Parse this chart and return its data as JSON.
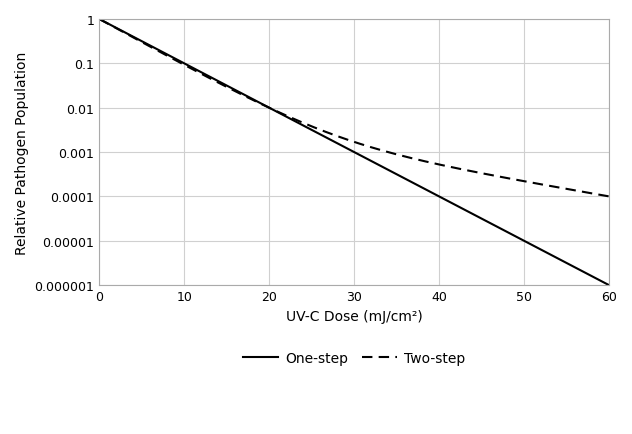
{
  "title": "",
  "xlabel": "UV-C Dose (mJ/cm²)",
  "ylabel": "Relative Pathogen Population",
  "xlim": [
    0,
    60
  ],
  "ylim": [
    1e-06,
    1
  ],
  "xticks": [
    0,
    10,
    20,
    30,
    40,
    50,
    60
  ],
  "one_step_k": 0.23026,
  "f1": 0.99,
  "f2": 0.01,
  "k_high": 0.242,
  "k_low": 0.0768,
  "line_color": "#000000",
  "line_width": 1.5,
  "legend_labels": [
    "One-step",
    "Two-step"
  ],
  "grid_color": "#d0d0d0",
  "background_color": "#ffffff",
  "yticks": [
    1e-06,
    1e-05,
    0.0001,
    0.001,
    0.01,
    0.1,
    1
  ],
  "ylabels": [
    "0.000001",
    "0.00001",
    "0.0001",
    "0.001",
    "0.01",
    "0.1",
    "1"
  ]
}
